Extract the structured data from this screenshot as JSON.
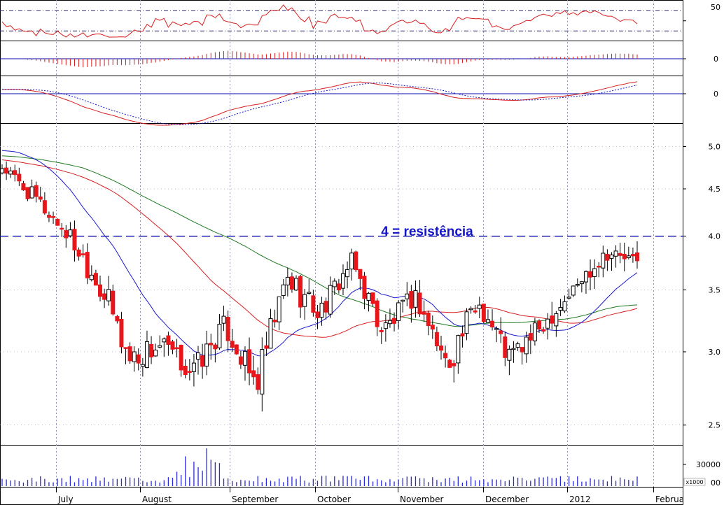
{
  "chart_data": {
    "type": "candlestick",
    "annotation": "4 = resistência",
    "resistance_level": 4.0,
    "x_labels": [
      "July",
      "August",
      "September",
      "October",
      "November",
      "December",
      "2012",
      "Februa"
    ],
    "y_ticks_price": [
      "5.0",
      "4.5",
      "4.0",
      "3.5",
      "3.0",
      "2.5"
    ],
    "y_ticks_rsi": [
      "50"
    ],
    "y_ticks_macd_hist": [
      "0"
    ],
    "y_ticks_macd": [
      "0"
    ],
    "y_ticks_volume": [
      "30000",
      "00"
    ],
    "volume_unit": "x1000",
    "y_range_price": [
      2.38,
      5.3
    ],
    "colors": {
      "up": "#ffffff",
      "down": "#e8161b",
      "ma_fast": "#1a1acc",
      "ma_mid": "#d81e1e",
      "ma_slow": "#1f7a1f",
      "resistance": "#0a0aa8",
      "volume": "#2a2ad8",
      "grid": "#8f8fb0"
    },
    "candles_weekly_approx": [
      {
        "month": "July",
        "open": 4.58,
        "close": 4.75,
        "high": 4.85,
        "low": 4.5
      },
      {
        "month": "July",
        "open": 4.7,
        "close": 4.4,
        "high": 4.75,
        "low": 4.2
      },
      {
        "month": "July",
        "open": 4.3,
        "close": 4.05,
        "high": 4.5,
        "low": 3.9
      },
      {
        "month": "August",
        "open": 4.1,
        "close": 3.6,
        "high": 4.2,
        "low": 3.3
      },
      {
        "month": "August",
        "open": 3.4,
        "close": 2.95,
        "high": 3.45,
        "low": 2.65
      },
      {
        "month": "August",
        "open": 2.9,
        "close": 3.05,
        "high": 3.25,
        "low": 2.8
      },
      {
        "month": "September",
        "open": 3.1,
        "close": 2.85,
        "high": 3.2,
        "low": 2.7
      },
      {
        "month": "September",
        "open": 2.85,
        "close": 3.2,
        "high": 3.25,
        "low": 2.8
      },
      {
        "month": "September",
        "open": 3.05,
        "close": 2.75,
        "high": 3.15,
        "low": 2.6
      },
      {
        "month": "October",
        "open": 2.8,
        "close": 3.6,
        "high": 3.7,
        "low": 2.8
      },
      {
        "month": "October",
        "open": 3.55,
        "close": 3.3,
        "high": 3.7,
        "low": 3.2
      },
      {
        "month": "October",
        "open": 3.4,
        "close": 3.75,
        "high": 3.8,
        "low": 3.35
      },
      {
        "month": "November",
        "open": 3.6,
        "close": 3.15,
        "high": 3.65,
        "low": 3.0
      },
      {
        "month": "November",
        "open": 3.2,
        "close": 3.45,
        "high": 3.5,
        "low": 3.1
      },
      {
        "month": "November",
        "open": 3.4,
        "close": 2.9,
        "high": 3.45,
        "low": 2.75
      },
      {
        "month": "December",
        "open": 2.95,
        "close": 3.4,
        "high": 3.45,
        "low": 2.9
      },
      {
        "month": "December",
        "open": 3.4,
        "close": 2.95,
        "high": 3.45,
        "low": 2.85
      },
      {
        "month": "December",
        "open": 3.0,
        "close": 3.2,
        "high": 3.25,
        "low": 2.95
      },
      {
        "month": "2012",
        "open": 3.15,
        "close": 3.5,
        "high": 3.55,
        "low": 3.1
      },
      {
        "month": "2012",
        "open": 3.55,
        "close": 3.85,
        "high": 3.9,
        "low": 3.5
      },
      {
        "month": "2012",
        "open": 3.85,
        "close": 3.75,
        "high": 3.88,
        "low": 3.65
      }
    ]
  }
}
